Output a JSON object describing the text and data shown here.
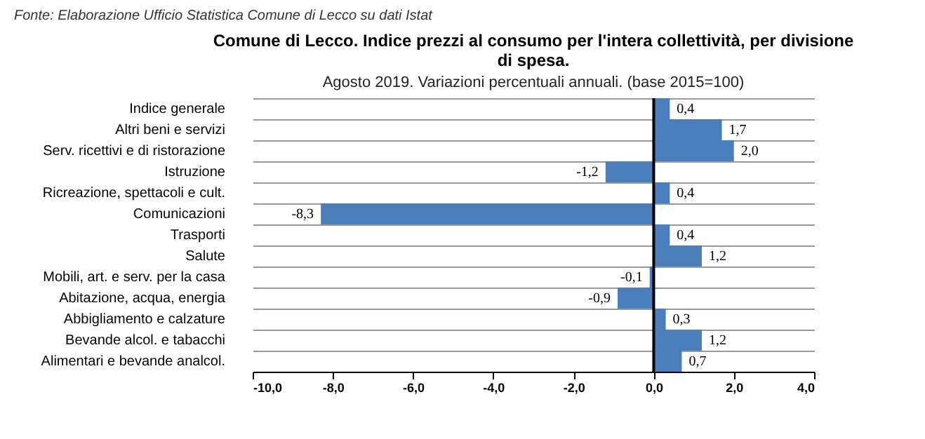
{
  "chart_data": {
    "type": "bar",
    "orientation": "horizontal",
    "title": "Comune di Lecco. Indice prezzi al consumo per l'intera collettività, per divisione di spesa.",
    "subtitle": "Agosto  2019. Variazioni percentuali annuali. (base 2015=100)",
    "annotations": [
      "Fonte: Elaborazione Ufficio Statistica Comune di Lecco su dati Istat"
    ],
    "categories": [
      "Indice generale",
      "Altri beni e servizi",
      "Serv. ricettivi e di ristorazione",
      "Istruzione",
      "Ricreazione, spettacoli e cult.",
      "Comunicazioni",
      "Trasporti",
      "Salute",
      "Mobili, art. e serv. per la casa",
      "Abitazione, acqua, energia",
      "Abbigliamento e calzature",
      "Bevande alcol. e tabacchi",
      "Alimentari e bevande analcol."
    ],
    "values": [
      0.4,
      1.7,
      2.0,
      -1.2,
      0.4,
      -8.3,
      0.4,
      1.2,
      -0.1,
      -0.9,
      0.3,
      1.2,
      0.7
    ],
    "value_labels": [
      "0,4",
      "1,7",
      "2,0",
      "-1,2",
      "0,4",
      "-8,3",
      "0,4",
      "1,2",
      "-0,1",
      "-0,9",
      "0,3",
      "1,2",
      "0,7"
    ],
    "color": "#4a7ebb",
    "xlim": [
      -10,
      4
    ],
    "xticks": [
      {
        "value": -10,
        "label": "-10,0"
      },
      {
        "value": -8,
        "label": "-8,0"
      },
      {
        "value": -6,
        "label": "-6,0"
      },
      {
        "value": -4,
        "label": "-4,0"
      },
      {
        "value": -2,
        "label": "-2,0"
      },
      {
        "value": 0,
        "label": "0,0"
      },
      {
        "value": 2,
        "label": "2,0"
      },
      {
        "value": 4,
        "label": "4,0"
      }
    ],
    "grid": "y"
  }
}
